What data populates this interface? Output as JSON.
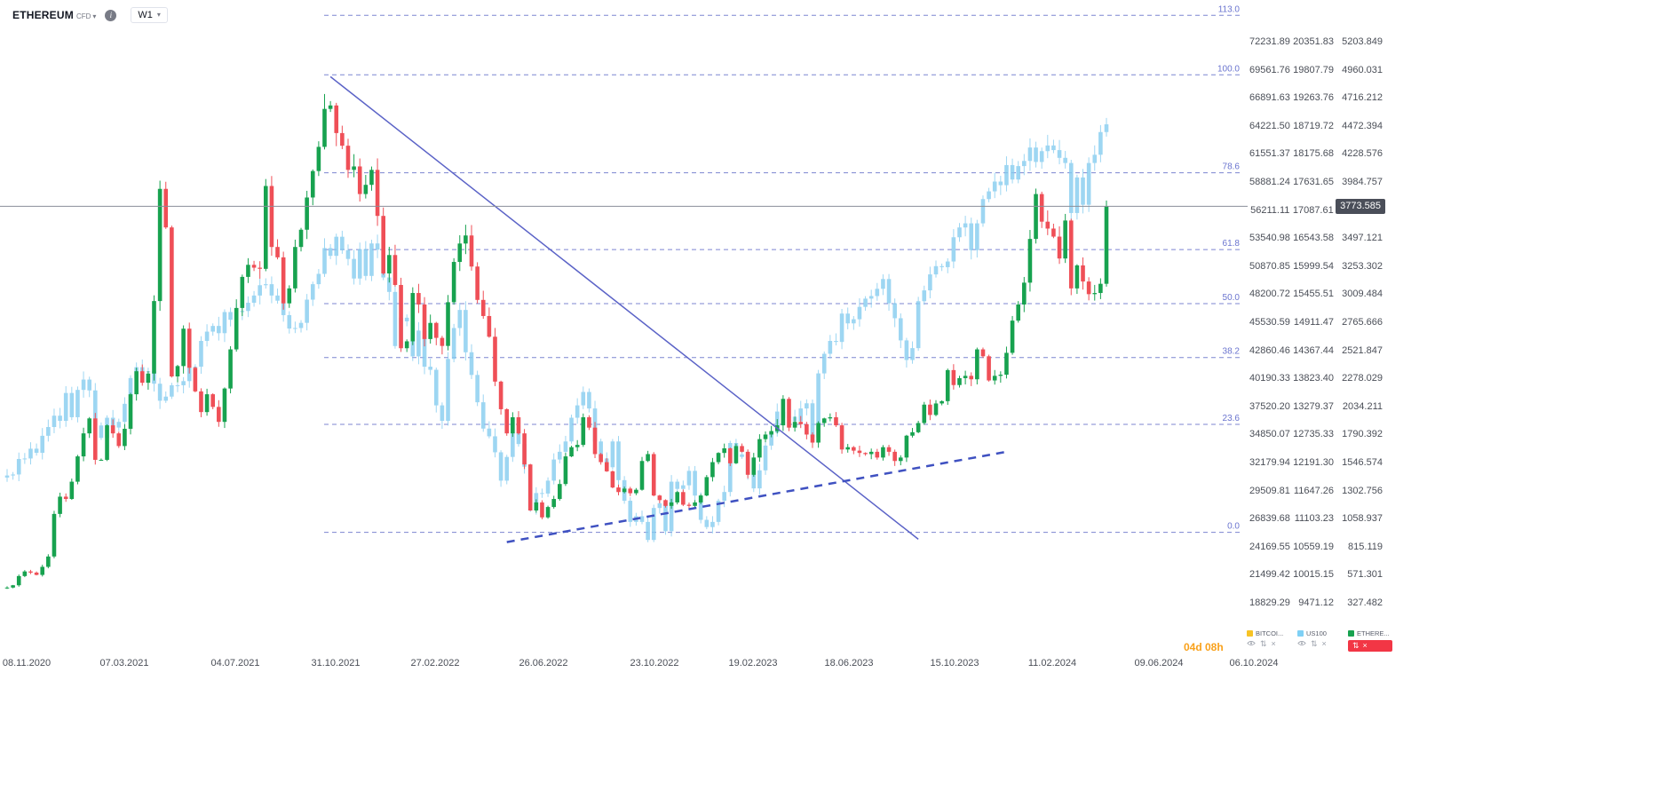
{
  "header": {
    "symbol": "ETHEREUM",
    "instrument_type": "CFD",
    "timeframe": "W1"
  },
  "current_price": {
    "label": "3773.585",
    "value": 3773.585
  },
  "countdown": "04d 08h",
  "colors": {
    "up": "#17a24f",
    "down": "#ef4f57",
    "us100": "#85ccf0",
    "fib": "#7c85d1",
    "fib_label": "#6a74cf",
    "trend_solid": "#5b63c7",
    "trend_dashed": "#3f51c1",
    "current_price_line": "#8a8e99",
    "badge_bg": "#4a4e59",
    "countdown": "#f9a11b"
  },
  "time_axis": {
    "labels": [
      "08.11.2020",
      "07.03.2021",
      "04.07.2021",
      "31.10.2021",
      "27.02.2022",
      "26.06.2022",
      "23.10.2022",
      "19.02.2023",
      "18.06.2023",
      "15.10.2023",
      "11.02.2024",
      "09.06.2024",
      "06.10.2024"
    ]
  },
  "price_axis": {
    "columns": [
      {
        "values": [
          "72231.89",
          "69561.76",
          "66891.63",
          "64221.50",
          "61551.37",
          "58881.24",
          "56211.11",
          "53540.98",
          "50870.85",
          "48200.72",
          "45530.59",
          "42860.46",
          "40190.33",
          "37520.20",
          "34850.07",
          "32179.94",
          "29509.81",
          "26839.68",
          "24169.55",
          "21499.42",
          "18829.29"
        ]
      },
      {
        "values": [
          "20351.83",
          "19807.79",
          "19263.76",
          "18719.72",
          "18175.68",
          "17631.65",
          "17087.61",
          "16543.58",
          "15999.54",
          "15455.51",
          "14911.47",
          "14367.44",
          "13823.40",
          "13279.37",
          "12735.33",
          "12191.30",
          "11647.26",
          "11103.23",
          "10559.19",
          "10015.15",
          "9471.12"
        ]
      },
      {
        "values": [
          "5203.849",
          "4960.031",
          "4716.212",
          "4472.394",
          "4228.576",
          "3984.757",
          "",
          "3497.121",
          "3253.302",
          "3009.484",
          "2765.666",
          "2521.847",
          "2278.029",
          "2034.211",
          "1790.392",
          "1546.574",
          "1302.756",
          "1058.937",
          "815.119",
          "571.301",
          "327.482"
        ]
      }
    ]
  },
  "legend": {
    "items": [
      {
        "label": "BITCOI...",
        "color": "#f7c325"
      },
      {
        "label": "US100",
        "color": "#7fd0f5"
      },
      {
        "label": "ETHERE...",
        "color": "#17a24f"
      }
    ]
  },
  "chart_data": {
    "type": "candlestick",
    "interval": "1W",
    "start_label": "08.11.2020",
    "end_label": "06.10.2024",
    "series": [
      {
        "name": "ETHEREUM",
        "axis_column": 2,
        "up_color": "#17a24f",
        "down_color": "#ef4f57",
        "initial_open": 455,
        "wick": 0.026,
        "opacity": 1,
        "closes": [
          460,
          480,
          560,
          600,
          590,
          570,
          640,
          730,
          1100,
          1250,
          1230,
          1380,
          1600,
          1800,
          1930,
          1570,
          1570,
          1870,
          1800,
          1690,
          1840,
          2140,
          2340,
          2240,
          2320,
          2950,
          3925,
          3590,
          2295,
          2385,
          2710,
          2370,
          2165,
          1985,
          2140,
          2030,
          1900,
          2190,
          2530,
          2890,
          3160,
          3265,
          3240,
          3230,
          3950,
          3420,
          3330,
          2930,
          3060,
          3420,
          3570,
          3850,
          4080,
          4290,
          4620,
          4650,
          4410,
          4300,
          4090,
          4120,
          3880,
          3960,
          4090,
          3690,
          3190,
          3350,
          3090,
          2540,
          2600,
          3020,
          2920,
          2620,
          2760,
          2630,
          2560,
          2940,
          3290,
          3450,
          3520,
          3250,
          2960,
          2820,
          2640,
          2250,
          2010,
          1800,
          1940,
          1800,
          1530,
          1130,
          1200,
          1070,
          1160,
          1230,
          1360,
          1600,
          1680,
          1700,
          1940,
          1850,
          1620,
          1550,
          1470,
          1330,
          1290,
          1320,
          1280,
          1310,
          1560,
          1620,
          1260,
          1220,
          1170,
          1200,
          1290,
          1180,
          1170,
          1200,
          1260,
          1420,
          1550,
          1630,
          1670,
          1540,
          1690,
          1640,
          1440,
          1590,
          1750,
          1790,
          1820,
          1870,
          2100,
          1850,
          1900,
          1880,
          1790,
          1720,
          1890,
          1930,
          1940,
          1870,
          1660,
          1680,
          1650,
          1630,
          1620,
          1640,
          1590,
          1680,
          1640,
          1560,
          1590,
          1780,
          1810,
          1890,
          2050,
          1960,
          2060,
          2080,
          2350,
          2220,
          2280,
          2300,
          2270,
          2530,
          2470,
          2260,
          2300,
          2310,
          2500,
          2780,
          2920,
          3110,
          3490,
          3880,
          3640,
          3580,
          3510,
          3320,
          3650,
          3060,
          3260,
          3120,
          3010,
          3020,
          3100,
          3773.585
        ]
      },
      {
        "name": "US100",
        "axis_column": 1,
        "color": "#85ccf0",
        "initial_open": 11900,
        "wick": 0.009,
        "opacity": 0.8,
        "closes": [
          11940,
          11960,
          12260,
          12270,
          12460,
          12380,
          12710,
          12880,
          13100,
          13000,
          13540,
          13070,
          13600,
          13800,
          13590,
          12910,
          12670,
          13060,
          12870,
          12980,
          13330,
          13830,
          14040,
          13940,
          13960,
          13720,
          13390,
          13470,
          13690,
          13690,
          13770,
          14030,
          14050,
          14550,
          14730,
          14840,
          14700,
          15110,
          14960,
          15110,
          15130,
          15290,
          15430,
          15630,
          15650,
          15430,
          15330,
          15050,
          14790,
          14800,
          14900,
          15350,
          15650,
          15850,
          16350,
          16200,
          16570,
          16310,
          16140,
          15760,
          16330,
          15810,
          16440,
          16320,
          15780,
          15500,
          14450,
          15000,
          14930,
          14250,
          14750,
          14050,
          13990,
          13300,
          13000,
          14200,
          14800,
          15150,
          14330,
          13890,
          13360,
          12850,
          12700,
          12390,
          11840,
          12300,
          12770,
          12550,
          12110,
          11270,
          11600,
          11590,
          11840,
          12250,
          12400,
          12600,
          13060,
          13300,
          13560,
          13240,
          12600,
          12270,
          12100,
          12600,
          11850,
          11450,
          11040,
          11150,
          11040,
          10690,
          11310,
          11400,
          10860,
          11820,
          11680,
          11750,
          12030,
          11550,
          11080,
          10940,
          11040,
          11450,
          11620,
          12570,
          12300,
          12350,
          11970,
          11690,
          12040,
          12520,
          12770,
          13180,
          13060,
          13080,
          12990,
          13240,
          13340,
          12680,
          13920,
          14300,
          14550,
          14530,
          15080,
          14890,
          14970,
          15210,
          15370,
          15420,
          15560,
          15750,
          15280,
          14990,
          14560,
          14180,
          14410,
          15320,
          15530,
          15840,
          16000,
          15980,
          16090,
          16560,
          16750,
          16830,
          16310,
          16830,
          17300,
          17450,
          17640,
          17570,
          17960,
          17680,
          17940,
          18040,
          18300,
          18020,
          18230,
          18340,
          18250,
          18100,
          18000,
          17030,
          17720,
          17190,
          18000,
          18160,
          18600,
          18750
        ]
      }
    ],
    "fib_retracement": {
      "color": "#7c85d1",
      "levels": [
        {
          "label": "113.0",
          "price": 5433
        },
        {
          "label": "100.0",
          "price": 4916
        },
        {
          "label": "78.6",
          "price": 4065
        },
        {
          "label": "61.8",
          "price": 3397
        },
        {
          "label": "50.0",
          "price": 2928
        },
        {
          "label": "38.2",
          "price": 2459
        },
        {
          "label": "23.6",
          "price": 1878
        },
        {
          "label": "0.0",
          "price": 940
        }
      ]
    },
    "trendlines": [
      {
        "name": "downtrend-line",
        "style": "solid",
        "from_week": 55,
        "from_price": 4900,
        "to_week": 155,
        "to_price": 880
      },
      {
        "name": "ascending-support-line",
        "style": "dashed",
        "from_week": 85,
        "from_price": 855,
        "to_week": 170,
        "to_price": 1640
      }
    ]
  }
}
